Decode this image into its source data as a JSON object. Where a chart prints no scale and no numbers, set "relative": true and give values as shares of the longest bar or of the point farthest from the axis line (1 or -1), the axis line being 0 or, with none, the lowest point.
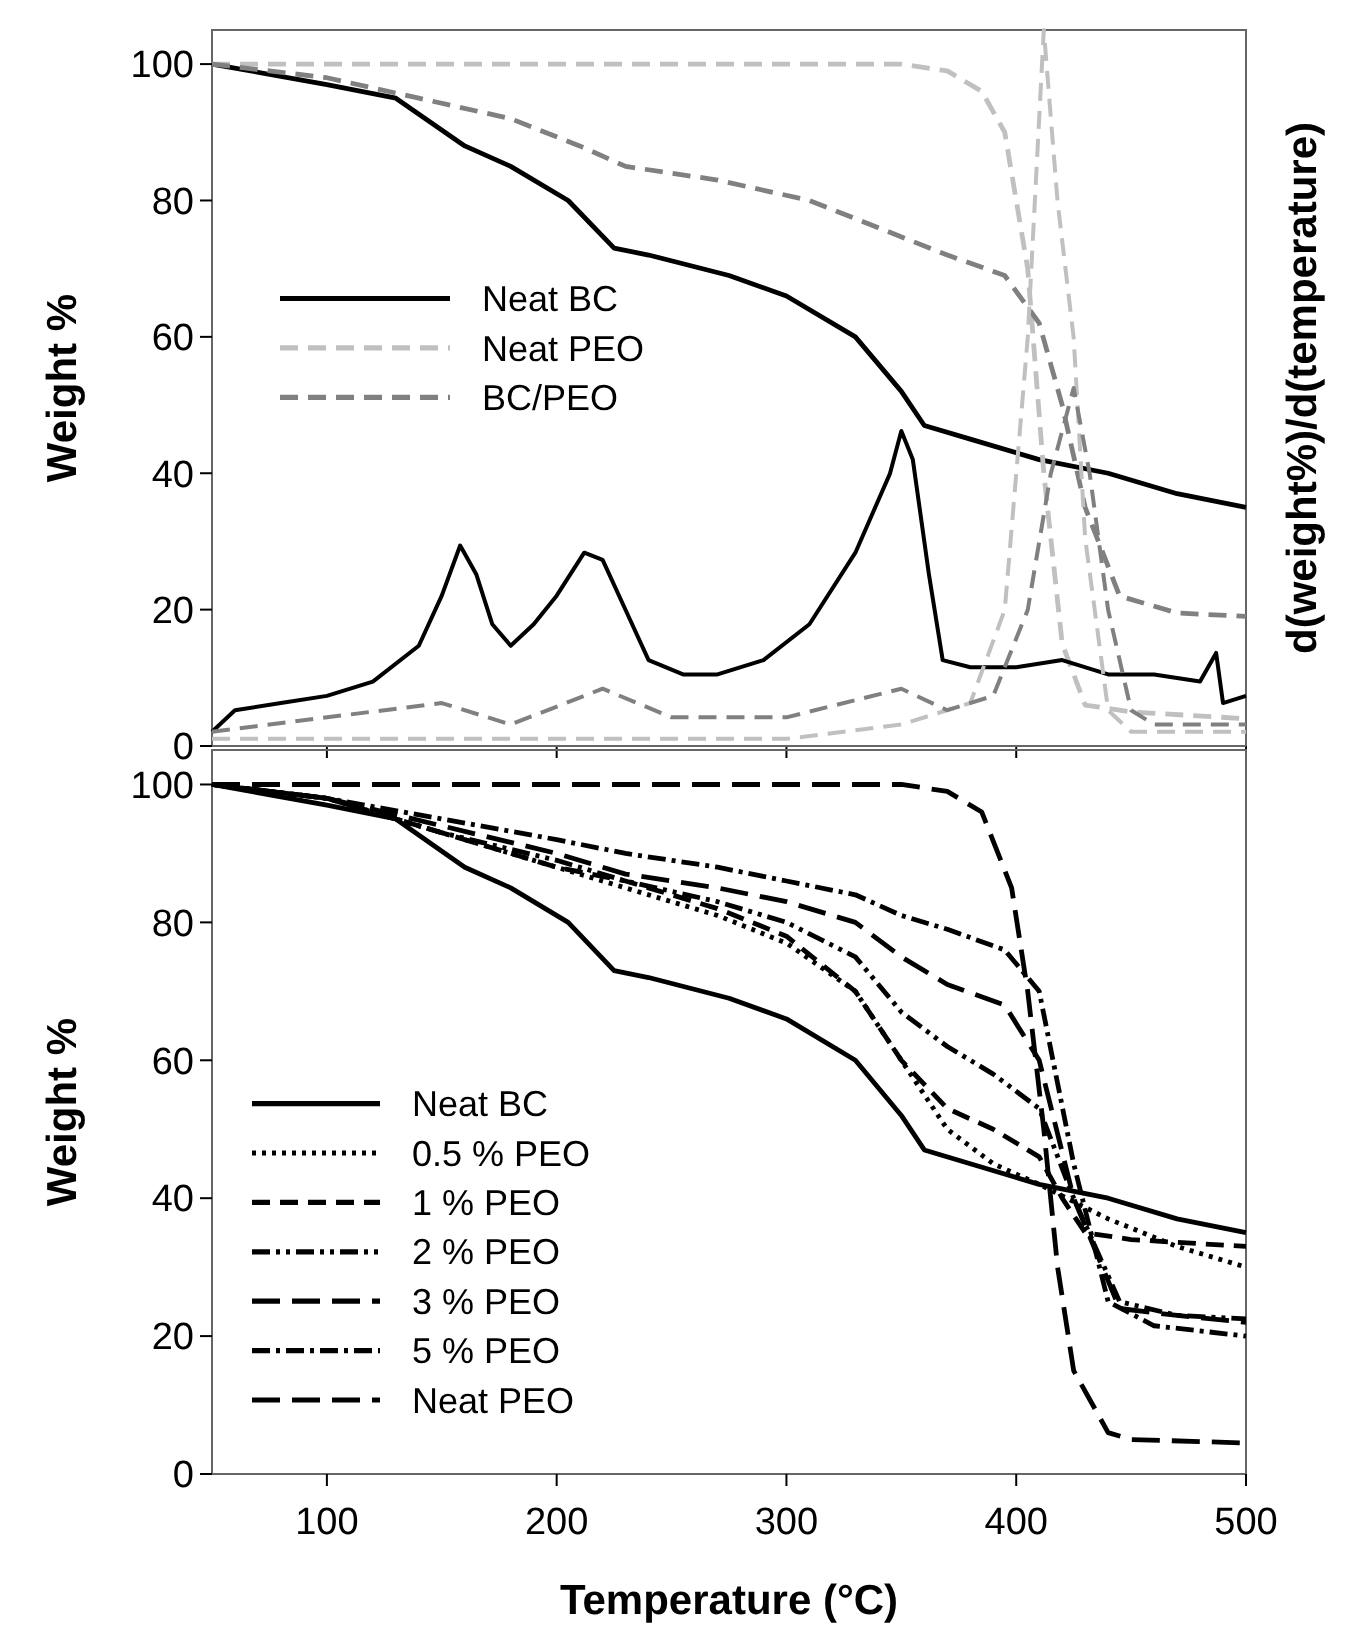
{
  "chart_data": [
    {
      "type": "line",
      "ylabel": "Weight %",
      "xlim": [
        50,
        500
      ],
      "xticks": [
        100,
        200,
        300,
        400,
        500
      ],
      "ylim": [
        0,
        105
      ],
      "yticks": [
        0,
        20,
        40,
        60,
        80,
        100
      ],
      "tick_labels": "y",
      "legend": "left",
      "grid": false,
      "series": [
        {
          "name": "Neat BC",
          "color": "#000000",
          "line_style": "solid",
          "x": [
            50,
            100,
            130,
            160,
            180,
            205,
            225,
            240,
            275,
            300,
            330,
            350,
            360,
            380,
            410,
            440,
            470,
            500
          ],
          "values": [
            100,
            97,
            95,
            88,
            85,
            80,
            73,
            72,
            69,
            66,
            60,
            52,
            47,
            45,
            42,
            40,
            37,
            35
          ]
        },
        {
          "name": "Neat PEO",
          "color": "#c0c0c0",
          "line_style": "dashed",
          "x": [
            50,
            200,
            350,
            370,
            385,
            395,
            405,
            412,
            420,
            430,
            450,
            500
          ],
          "values": [
            100,
            100,
            100,
            99,
            96,
            90,
            70,
            40,
            15,
            6,
            5,
            4
          ]
        },
        {
          "name": "BC/PEO",
          "color": "#808080",
          "line_style": "dashed",
          "x": [
            50,
            100,
            140,
            180,
            210,
            230,
            270,
            310,
            340,
            370,
            395,
            410,
            420,
            430,
            445,
            470,
            500
          ],
          "values": [
            100,
            98,
            95,
            92,
            88,
            85,
            83,
            80,
            76,
            72,
            69,
            62,
            50,
            35,
            22,
            19.5,
            19
          ]
        }
      ]
    },
    {
      "type": "line",
      "y2label": "d(weight%)/d(temperature)",
      "relative": true,
      "xlim": [
        50,
        500
      ],
      "tick_labels": false,
      "series": [
        {
          "color": "#000000",
          "line_style": "solid",
          "x": [
            50,
            60,
            80,
            100,
            120,
            140,
            150,
            158,
            165,
            172,
            180,
            190,
            200,
            212,
            220,
            230,
            240,
            255,
            270,
            290,
            310,
            330,
            345,
            350,
            355,
            362,
            368,
            380,
            400,
            420,
            440,
            460,
            480,
            487,
            490,
            500
          ],
          "values": [
            0.02,
            0.05,
            0.06,
            0.07,
            0.09,
            0.14,
            0.21,
            0.28,
            0.24,
            0.17,
            0.14,
            0.17,
            0.21,
            0.27,
            0.26,
            0.19,
            0.12,
            0.1,
            0.1,
            0.12,
            0.17,
            0.27,
            0.38,
            0.44,
            0.4,
            0.24,
            0.12,
            0.11,
            0.11,
            0.12,
            0.1,
            0.1,
            0.09,
            0.13,
            0.06,
            0.07
          ]
        },
        {
          "color": "#c0c0c0",
          "line_style": "dashed",
          "x": [
            50,
            300,
            350,
            380,
            395,
            405,
            412,
            418,
            425,
            430,
            440,
            450,
            500
          ],
          "values": [
            0.01,
            0.01,
            0.03,
            0.06,
            0.19,
            0.57,
            1,
            0.76,
            0.57,
            0.29,
            0.05,
            0.02,
            0.02
          ]
        },
        {
          "color": "#808080",
          "line_style": "dashed",
          "x": [
            50,
            150,
            180,
            220,
            250,
            300,
            350,
            370,
            390,
            405,
            415,
            425,
            432,
            440,
            450,
            460,
            500
          ],
          "values": [
            0.02,
            0.06,
            0.03,
            0.08,
            0.04,
            0.04,
            0.08,
            0.05,
            0.07,
            0.19,
            0.38,
            0.5,
            0.38,
            0.19,
            0.05,
            0.03,
            0.03
          ]
        }
      ]
    },
    {
      "type": "line",
      "xlabel": "Temperature (°C)",
      "ylabel": "Weight %",
      "xlim": [
        50,
        500
      ],
      "xticks": [
        100,
        200,
        300,
        400,
        500
      ],
      "ylim": [
        0,
        105
      ],
      "yticks": [
        0,
        20,
        40,
        60,
        80,
        100
      ],
      "legend": "bottom left",
      "grid": false,
      "series": [
        {
          "name": "Neat BC",
          "color": "#000000",
          "line_style": "solid",
          "x": [
            50,
            100,
            130,
            160,
            180,
            205,
            225,
            240,
            275,
            300,
            330,
            350,
            360,
            380,
            410,
            440,
            470,
            500
          ],
          "values": [
            100,
            97,
            95,
            88,
            85,
            80,
            73,
            72,
            69,
            66,
            60,
            52,
            47,
            45,
            42,
            40,
            37,
            35
          ]
        },
        {
          "name": "0.5 % PEO",
          "color": "#000000",
          "line_style": "dotted",
          "x": [
            50,
            100,
            150,
            200,
            230,
            270,
            300,
            330,
            350,
            370,
            390,
            410,
            440,
            470,
            500
          ],
          "values": [
            100,
            98,
            93,
            88,
            85,
            81,
            77,
            70,
            60,
            50,
            45,
            42,
            37,
            33,
            30
          ]
        },
        {
          "name": "1 % PEO",
          "color": "#000000",
          "line_style": "dashed",
          "x": [
            50,
            100,
            150,
            200,
            230,
            270,
            300,
            330,
            350,
            370,
            390,
            410,
            420,
            430,
            450,
            500
          ],
          "values": [
            100,
            98,
            93,
            88,
            86,
            82,
            78,
            70,
            60,
            53,
            50,
            46,
            40,
            35,
            34,
            33
          ]
        },
        {
          "name": "2 % PEO",
          "color": "#000000",
          "line_style": "dashdotdot",
          "x": [
            50,
            100,
            150,
            200,
            230,
            270,
            300,
            330,
            350,
            370,
            390,
            410,
            425,
            445,
            470,
            500
          ],
          "values": [
            100,
            98,
            93,
            89,
            86,
            83,
            80,
            75,
            67,
            62,
            58,
            53,
            40,
            25,
            23,
            22.5
          ]
        },
        {
          "name": "3 % PEO",
          "color": "#000000",
          "line_style": "longdash",
          "x": [
            50,
            100,
            150,
            200,
            230,
            270,
            300,
            330,
            350,
            370,
            395,
            410,
            425,
            445,
            470,
            500
          ],
          "values": [
            100,
            98,
            94,
            90,
            87,
            85,
            83,
            80,
            75,
            71,
            68,
            60,
            40,
            24,
            23,
            22
          ]
        },
        {
          "name": "5 % PEO",
          "color": "#000000",
          "line_style": "dashdot",
          "x": [
            50,
            100,
            150,
            200,
            230,
            270,
            300,
            330,
            350,
            370,
            395,
            410,
            425,
            440,
            460,
            500
          ],
          "values": [
            100,
            98,
            95,
            92,
            90,
            88,
            86,
            84,
            81,
            79,
            76,
            70,
            45,
            25,
            21.5,
            20
          ]
        },
        {
          "name": "Neat PEO",
          "color": "#000000",
          "line_style": "longdash",
          "x": [
            50,
            200,
            350,
            370,
            385,
            398,
            405,
            412,
            418,
            425,
            440,
            450,
            500
          ],
          "values": [
            100,
            100,
            100,
            99,
            96,
            85,
            70,
            50,
            30,
            15,
            6,
            5,
            4.5
          ]
        }
      ]
    }
  ]
}
